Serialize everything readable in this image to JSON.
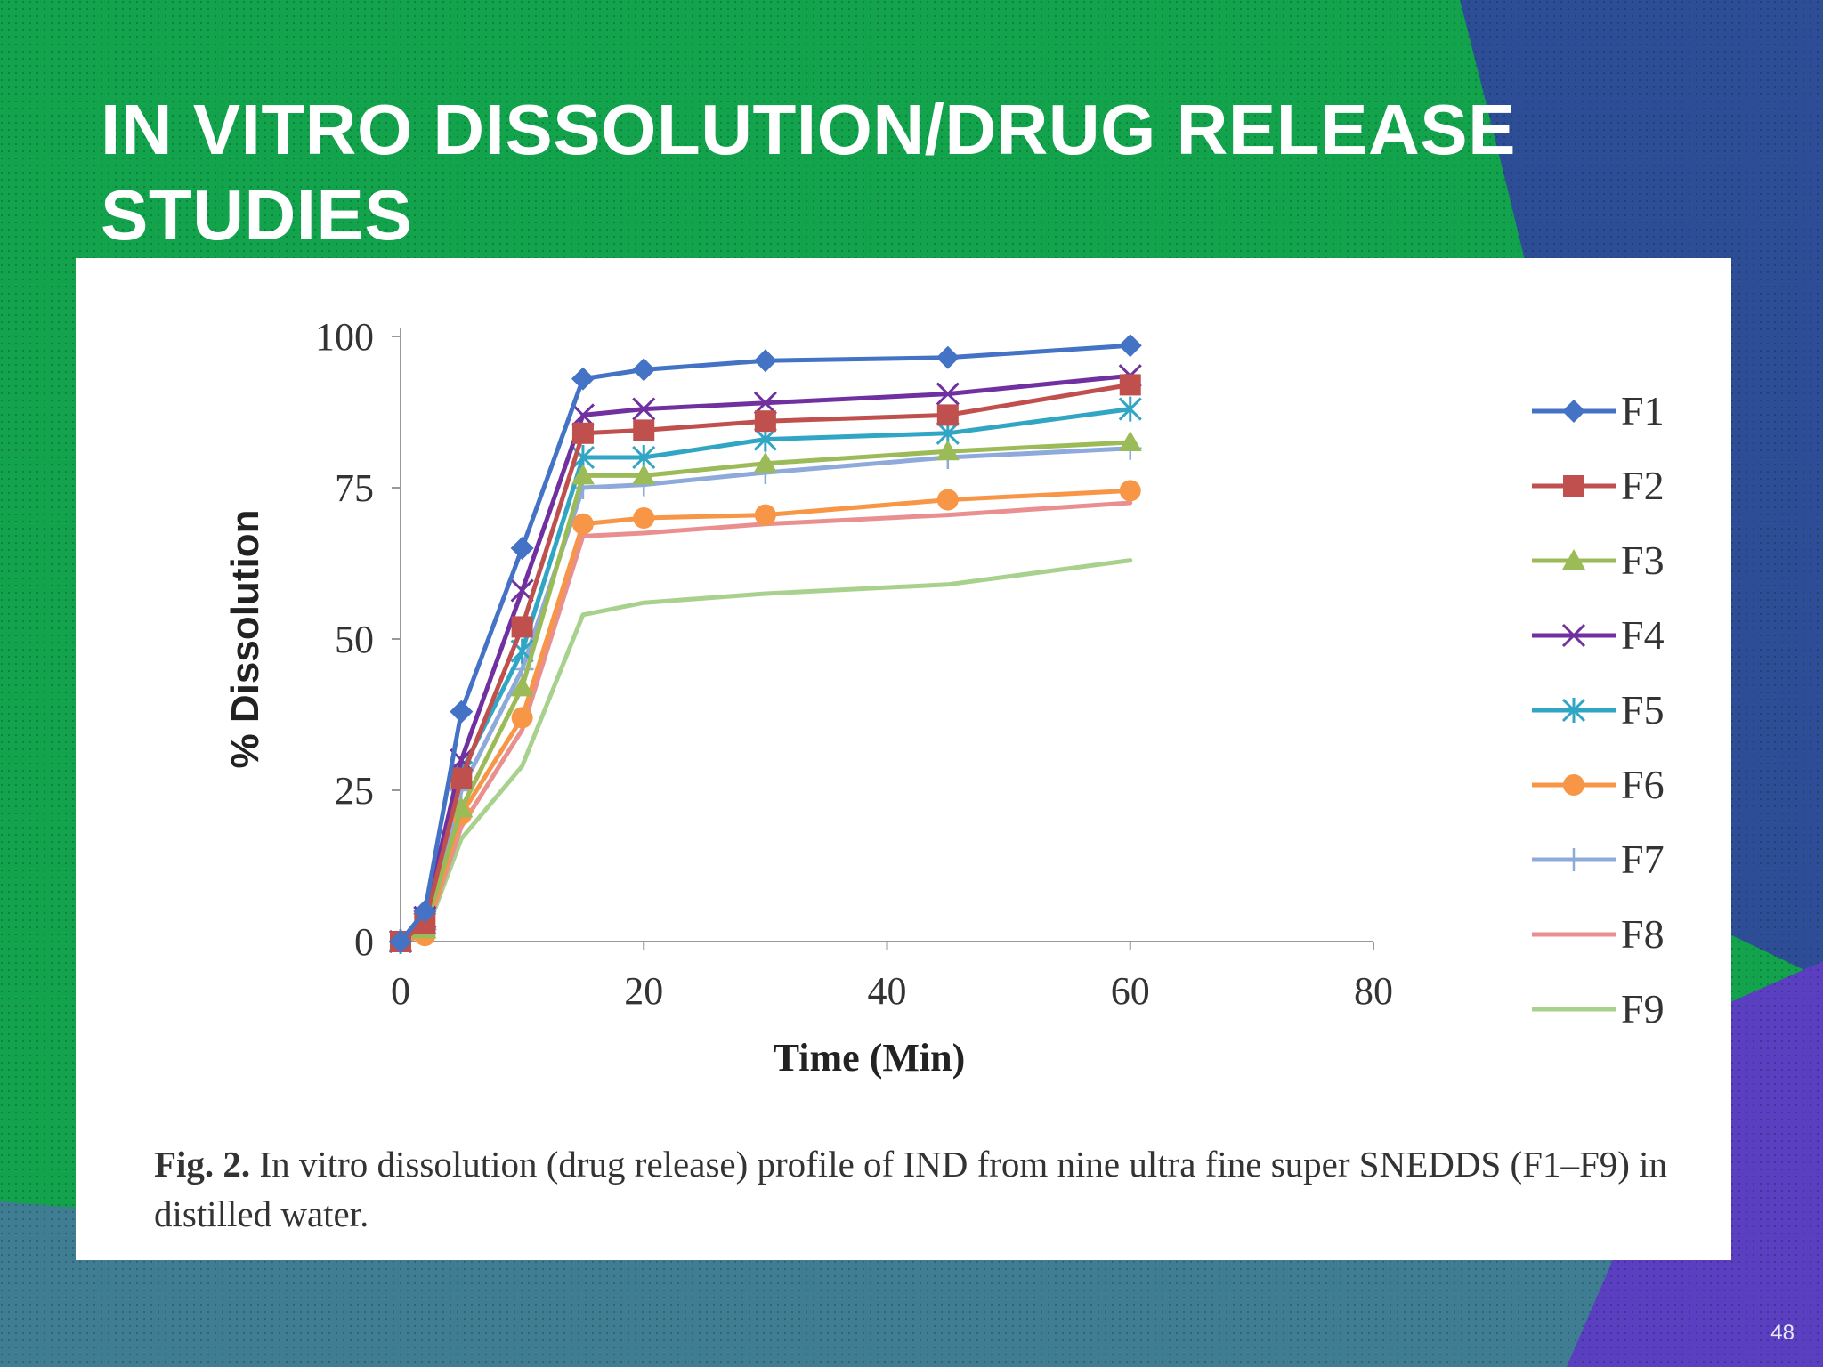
{
  "slide": {
    "title_line1": "IN VITRO DISSOLUTION/DRUG RELEASE",
    "title_line2": "STUDIES",
    "page_number": "48",
    "caption_lead": "Fig. 2.",
    "caption_body": " In vitro dissolution (drug release) profile of IND from nine ultra fine super SNEDDS (F1–F9) in distilled water.",
    "colors": {
      "background_green": "#12a34c",
      "navy": "#2d4e96",
      "purple": "#5a3fc0",
      "panel": "#ffffff"
    }
  },
  "chart_data": {
    "type": "line",
    "title": "",
    "xlabel": "Time (Min)",
    "ylabel": "% Dissolution",
    "xlim": [
      0,
      80
    ],
    "ylim": [
      0,
      100
    ],
    "xticks": [
      0,
      20,
      40,
      60,
      80
    ],
    "yticks": [
      0,
      25,
      50,
      75,
      100
    ],
    "legend_position": "right",
    "grid": false,
    "x": [
      0,
      2,
      5,
      10,
      15,
      20,
      30,
      45,
      60
    ],
    "series": [
      {
        "name": "F1",
        "color": "#4472c4",
        "marker": "diamond",
        "values": [
          0,
          5,
          38,
          65,
          93,
          94.5,
          96,
          96.5,
          98.5
        ]
      },
      {
        "name": "F2",
        "color": "#c0504d",
        "marker": "square",
        "values": [
          0,
          3,
          27,
          52,
          84,
          84.5,
          86,
          87,
          92
        ]
      },
      {
        "name": "F3",
        "color": "#9bbb59",
        "marker": "triangle",
        "values": [
          0,
          2,
          22,
          42,
          77,
          77,
          79,
          81,
          82.5
        ]
      },
      {
        "name": "F4",
        "color": "#7030a0",
        "marker": "x",
        "values": [
          0,
          4,
          30,
          58,
          87,
          88,
          89,
          90.5,
          93.5
        ]
      },
      {
        "name": "F5",
        "color": "#31a5c4",
        "marker": "star",
        "values": [
          0,
          3,
          28,
          48,
          80,
          80,
          83,
          84,
          88
        ]
      },
      {
        "name": "F6",
        "color": "#f79646",
        "marker": "circle",
        "values": [
          0,
          1,
          21,
          37,
          69,
          70,
          70.5,
          73,
          74.5
        ]
      },
      {
        "name": "F7",
        "color": "#8eaadb",
        "marker": "plus",
        "values": [
          0,
          2,
          25,
          45,
          75,
          75.5,
          77.5,
          80,
          81.5
        ]
      },
      {
        "name": "F8",
        "color": "#ea8f8f",
        "marker": "dash",
        "values": [
          0,
          1,
          19,
          35,
          67,
          67.5,
          69,
          70.5,
          72.5
        ]
      },
      {
        "name": "F9",
        "color": "#a9d18e",
        "marker": "dash",
        "values": [
          0,
          1,
          17,
          29,
          54,
          56,
          57.5,
          59,
          63
        ]
      }
    ]
  }
}
